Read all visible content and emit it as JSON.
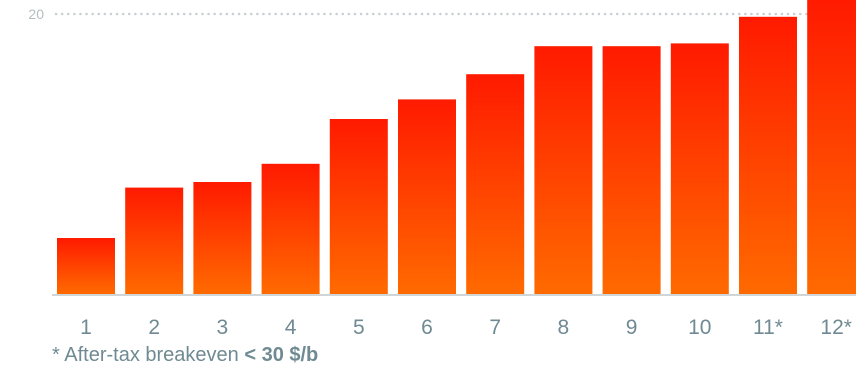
{
  "chart_data": {
    "type": "bar",
    "categories": [
      "1",
      "2",
      "3",
      "4",
      "5",
      "6",
      "7",
      "8",
      "9",
      "10",
      "11*",
      "12*"
    ],
    "values": [
      4.0,
      7.6,
      8.0,
      9.3,
      12.5,
      13.9,
      15.7,
      17.7,
      17.7,
      17.9,
      19.8,
      21.4
    ],
    "title": "",
    "xlabel": "",
    "ylabel": "",
    "ylim": [
      0,
      21
    ],
    "y_ticks": [
      20
    ],
    "y_tick_labels": [
      "20"
    ],
    "grid": "dotted line at 20",
    "legend": "none"
  },
  "colors": {
    "bar_top": "#ff1a00",
    "bar_bottom": "#ff6a00",
    "axis": "#d0d5d8",
    "grid": "#c9d0d4",
    "tick_label": "#6f8a92",
    "y_tick_label": "#b4bec3"
  },
  "footnote": {
    "prefix": "* After-tax breakeven ",
    "emphasis": "< 30 $/b"
  }
}
